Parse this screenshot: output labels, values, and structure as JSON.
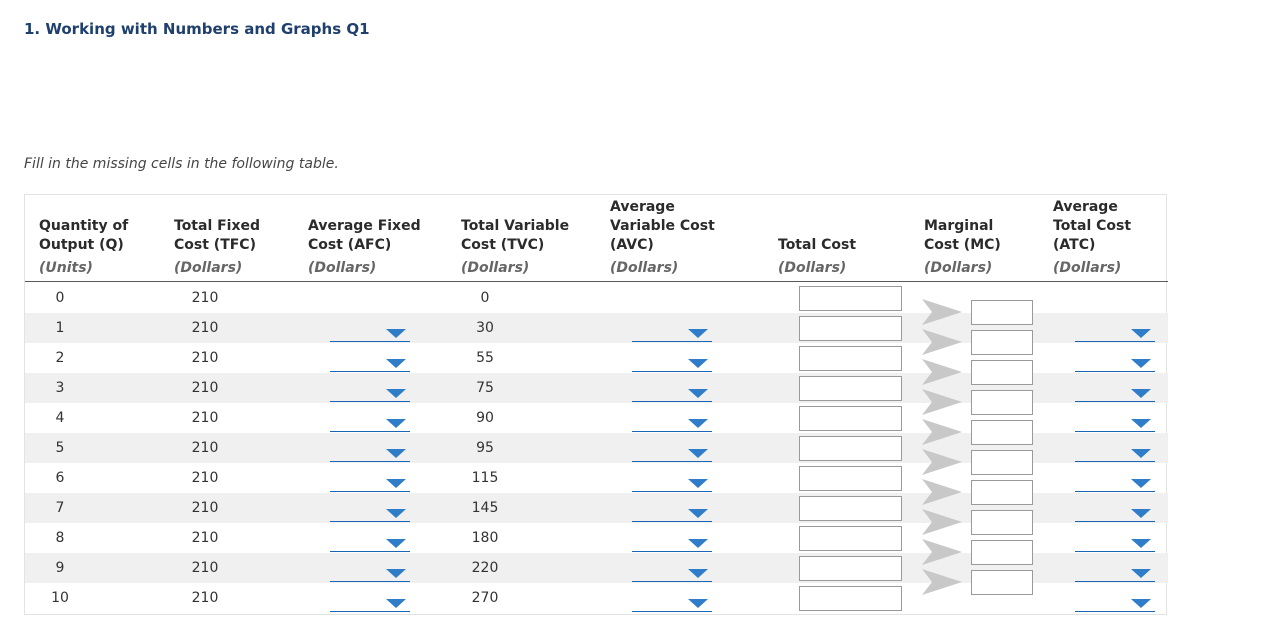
{
  "page": {
    "title": "1. Working with Numbers and Graphs Q1",
    "instructions": "Fill in the missing cells in the following table."
  },
  "table": {
    "headers": [
      {
        "lines": [
          "Quantity of",
          "Output (Q)"
        ],
        "unit": "(Units)"
      },
      {
        "lines": [
          "Total Fixed",
          "Cost (TFC)"
        ],
        "unit": "(Dollars)"
      },
      {
        "lines": [
          "Average Fixed",
          "Cost (AFC)"
        ],
        "unit": "(Dollars)"
      },
      {
        "lines": [
          "Total Variable",
          "Cost (TVC)"
        ],
        "unit": "(Dollars)"
      },
      {
        "lines": [
          "Average",
          "Variable Cost",
          "(AVC)"
        ],
        "unit": "(Dollars)"
      },
      {
        "lines": [
          "Total Cost"
        ],
        "unit": "(Dollars)"
      },
      {
        "lines": [
          "Marginal",
          "Cost (MC)"
        ],
        "unit": "(Dollars)"
      },
      {
        "lines": [
          "Average",
          "Total Cost",
          "(ATC)"
        ],
        "unit": "(Dollars)"
      }
    ],
    "rows": [
      {
        "q": "0",
        "tfc": "210",
        "tvc": "0"
      },
      {
        "q": "1",
        "tfc": "210",
        "tvc": "30"
      },
      {
        "q": "2",
        "tfc": "210",
        "tvc": "55"
      },
      {
        "q": "3",
        "tfc": "210",
        "tvc": "75"
      },
      {
        "q": "4",
        "tfc": "210",
        "tvc": "90"
      },
      {
        "q": "5",
        "tfc": "210",
        "tvc": "95"
      },
      {
        "q": "6",
        "tfc": "210",
        "tvc": "115"
      },
      {
        "q": "7",
        "tfc": "210",
        "tvc": "145"
      },
      {
        "q": "8",
        "tfc": "210",
        "tvc": "180"
      },
      {
        "q": "9",
        "tfc": "210",
        "tvc": "220"
      },
      {
        "q": "10",
        "tfc": "210",
        "tvc": "270"
      }
    ]
  },
  "colors": {
    "title": "#1f3f6e",
    "dropdown_arrow": "#2f7dc9",
    "dropdown_line": "#1a66b3",
    "row_stripe": "#f0f0f0"
  },
  "icons": {
    "dropdown": "caret-down-icon",
    "mc_marker": "chevron-right-icon"
  }
}
